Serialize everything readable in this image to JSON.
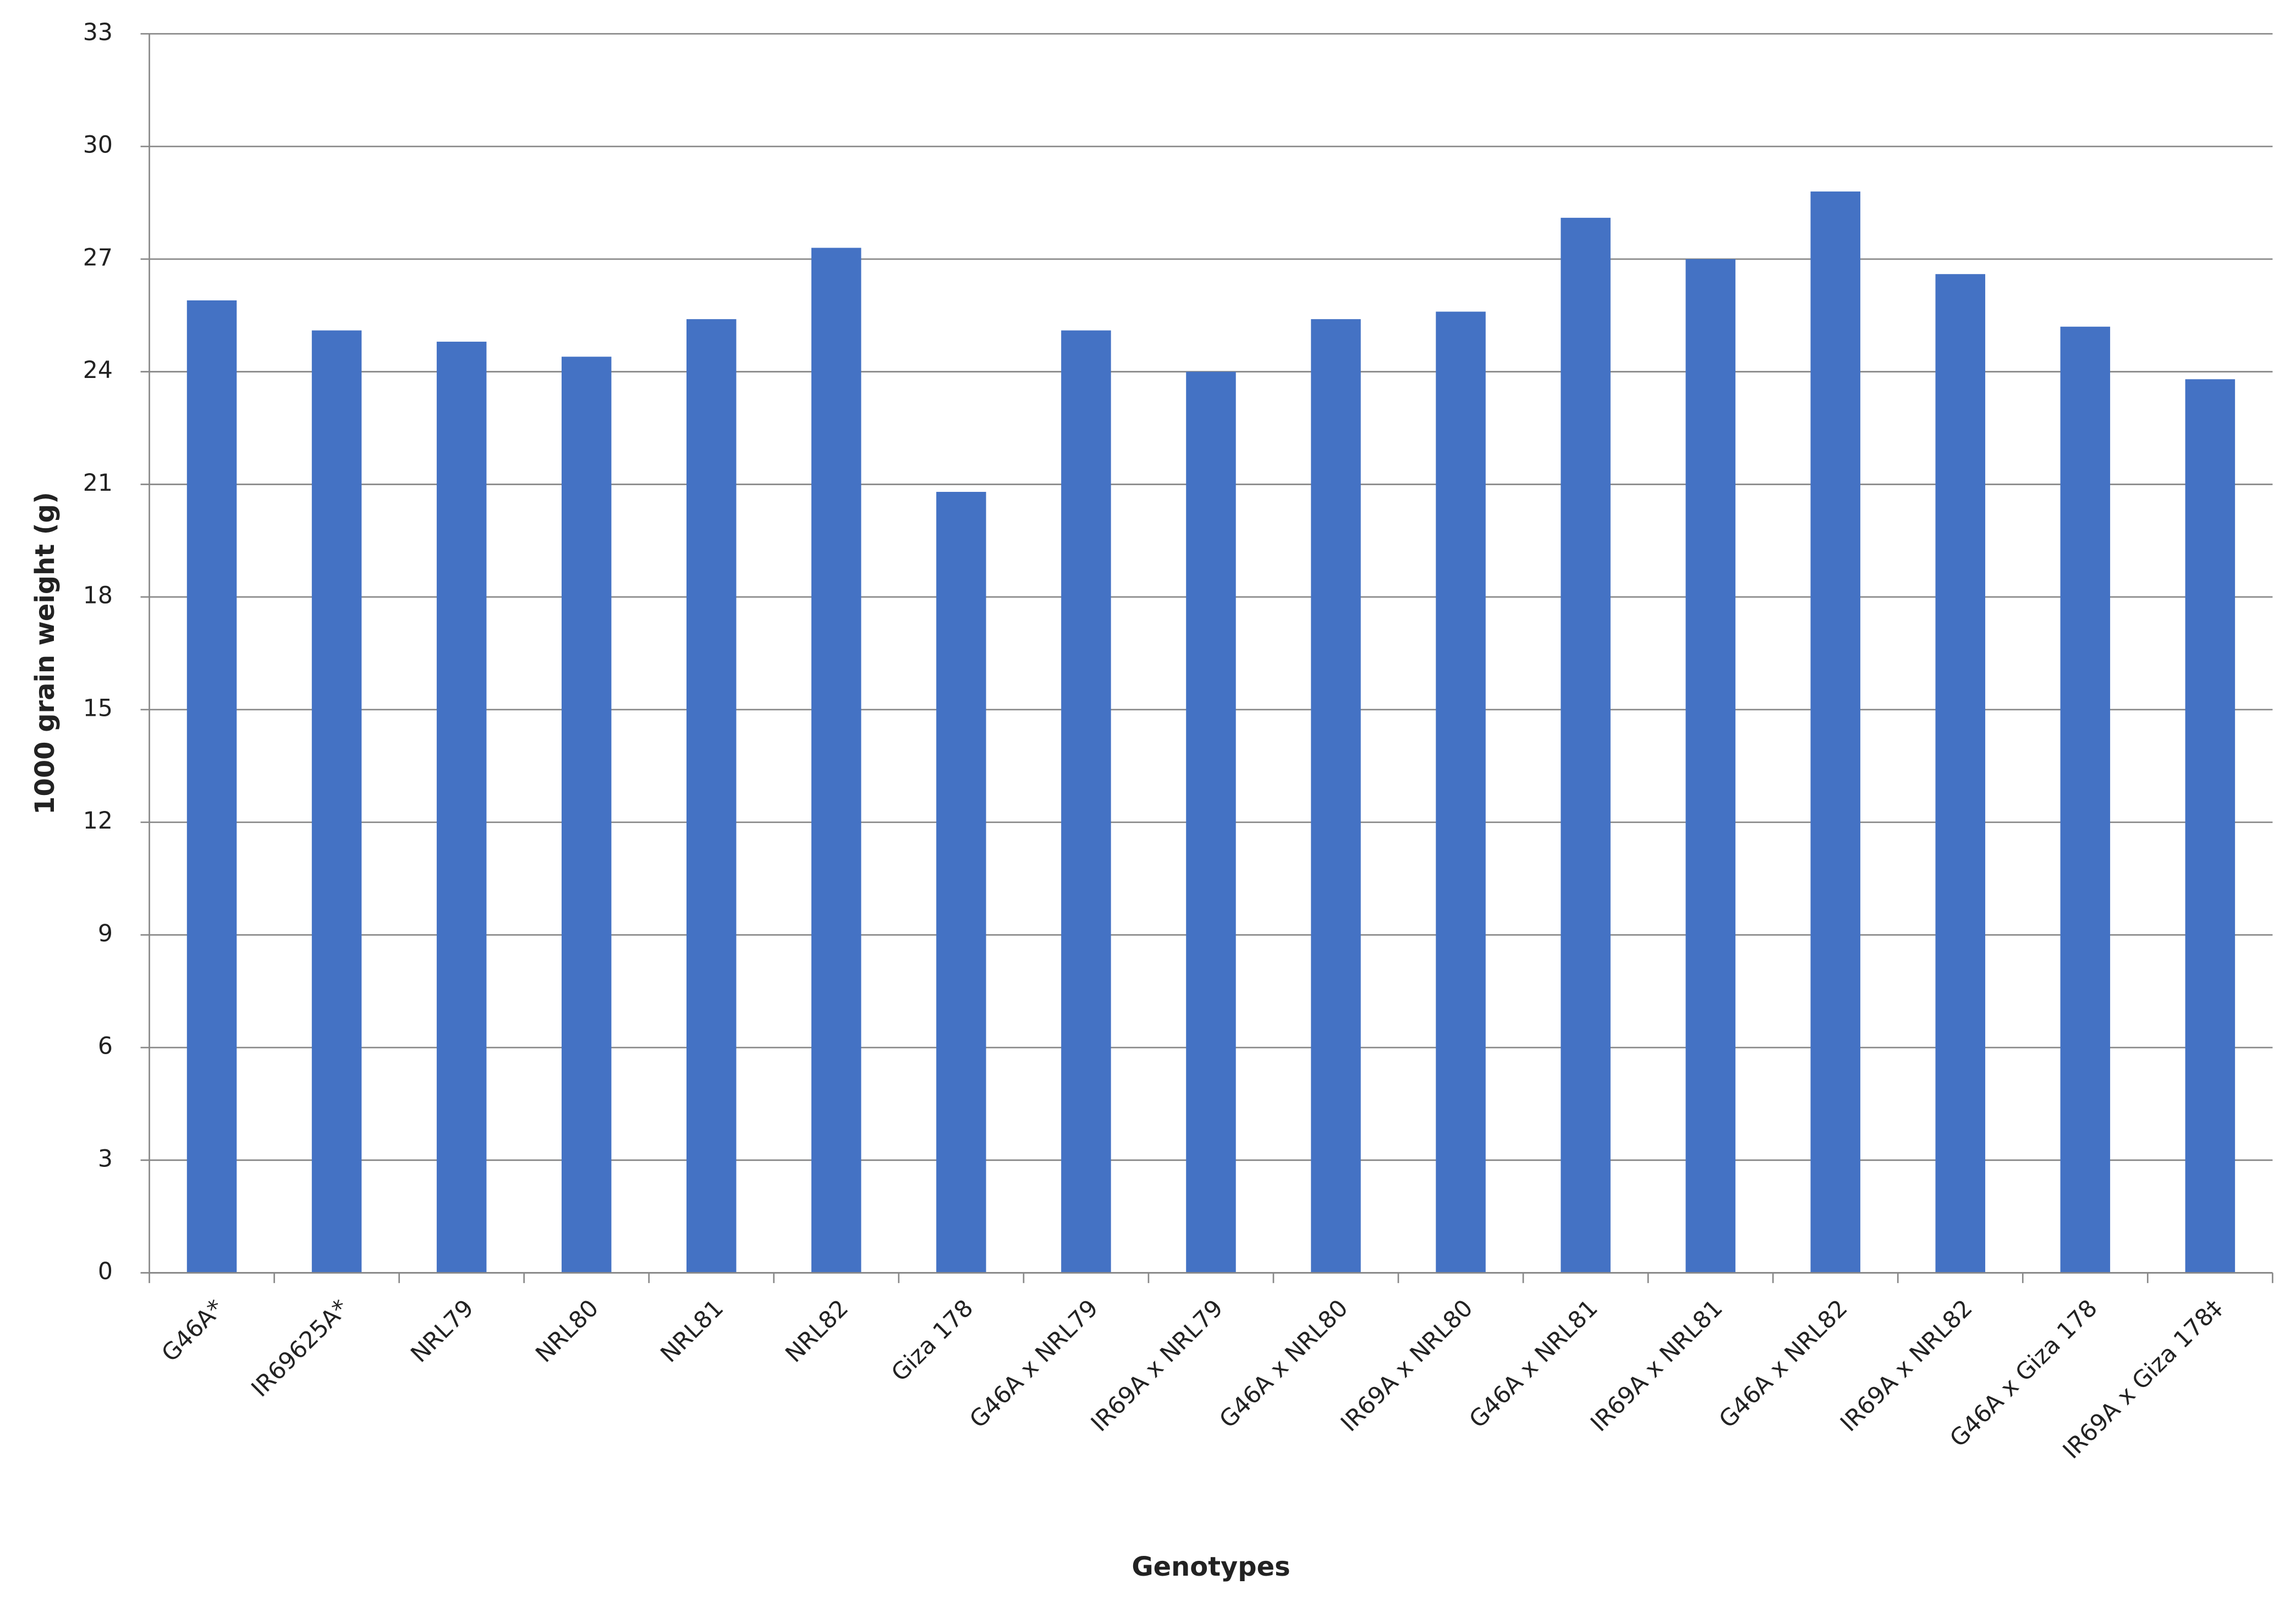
{
  "chart_data": {
    "type": "bar",
    "x_label": "Genotypes",
    "y_label": "1000 grain weight (g)",
    "categories": [
      "G46A*",
      "IR69625A*",
      "NRL79",
      "NRL80",
      "NRL81",
      "NRL82",
      "Giza 178",
      "G46A x NRL79",
      "IR69A x NRL79",
      "G46A x NRL80",
      "IR69A x NRL80",
      "G46A x NRL81",
      "IR69A x NRL81",
      "G46A x NRL82",
      "IR69A x NRL82",
      "G46A x Giza 178",
      "IR69A x Giza 178‡"
    ],
    "values": [
      25.9,
      25.1,
      24.8,
      24.4,
      25.4,
      27.3,
      20.8,
      25.1,
      24.0,
      25.4,
      25.6,
      28.1,
      27.0,
      28.8,
      26.6,
      25.2,
      23.8
    ],
    "color": "#4472c4",
    "ylim": [
      0,
      33
    ],
    "yticks": [
      0,
      3,
      6,
      9,
      12,
      15,
      18,
      21,
      24,
      27,
      30,
      33
    ],
    "grid": true
  }
}
